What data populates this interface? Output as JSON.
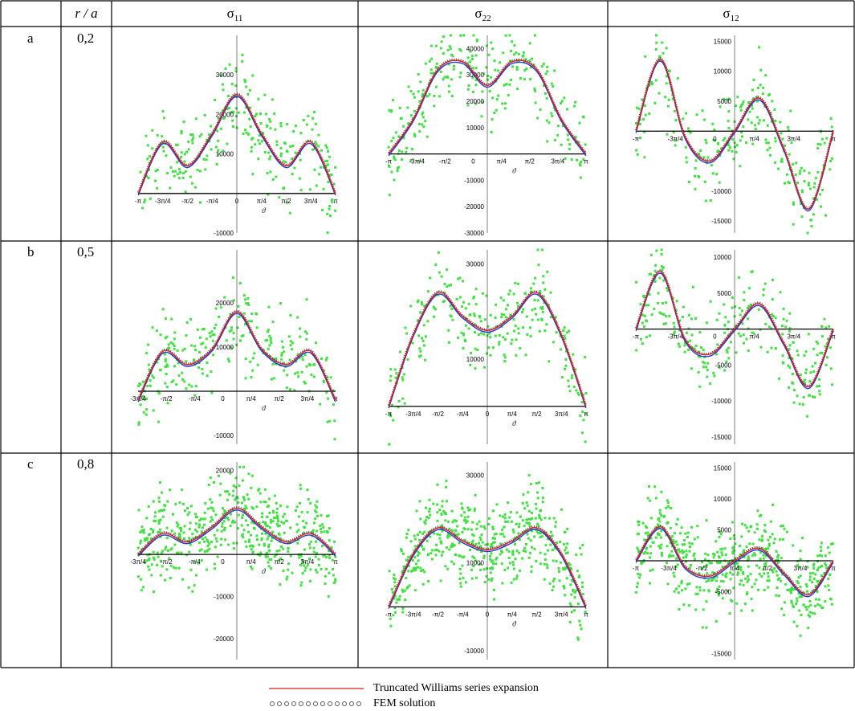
{
  "header": {
    "col_ra": "r / a",
    "col_s11_main": "σ",
    "col_s11_sub": "11",
    "col_s22_main": "σ",
    "col_s22_sub": "22",
    "col_s12_main": "σ",
    "col_s12_sub": "12"
  },
  "rows": [
    {
      "label": "a",
      "ra": "0,2"
    },
    {
      "label": "b",
      "ra": "0,5"
    },
    {
      "label": "c",
      "ra": "0,8"
    }
  ],
  "legend": {
    "williams": "Truncated Williams series expansion",
    "fem": "FEM solution"
  },
  "colors": {
    "williams": "#e11a1a",
    "fem": "#555555",
    "blue": "#1a3bd6",
    "cyan": "#1b8fd6",
    "noise": "#43e043",
    "axis": "#000000"
  },
  "chart_data": [
    {
      "id": "a-s11",
      "type": "line",
      "xlim": [
        -3.1416,
        3.1416
      ],
      "ylim": [
        -10000,
        40000
      ],
      "ytick_labels": [
        "-10000",
        "10000",
        "20000",
        "30000"
      ],
      "ytick_values": [
        -10000,
        10000,
        20000,
        30000
      ],
      "xtick_labels": [
        "-π",
        "-3π/4",
        "-π/2",
        "-π/4",
        "0",
        "π/4",
        "π/2",
        "3π/4",
        "π"
      ],
      "xlabel": "ϑ",
      "series": [
        {
          "role": "williams",
          "x": [
            -3.14,
            -2.36,
            -1.57,
            -0.79,
            0,
            0.79,
            1.57,
            2.36,
            3.14
          ],
          "y": [
            0,
            13000,
            7000,
            15000,
            25000,
            15000,
            7000,
            13000,
            0
          ]
        },
        {
          "role": "fem",
          "x": [
            -3.14,
            -2.36,
            -1.57,
            -0.79,
            0,
            0.79,
            1.57,
            2.36,
            3.14
          ],
          "y": [
            0,
            13000,
            7000,
            15000,
            25000,
            15000,
            7000,
            13000,
            0
          ]
        },
        {
          "role": "blue",
          "x": [
            -3.14,
            -2.36,
            -1.57,
            -0.79,
            0,
            0.79,
            1.57,
            2.36,
            3.14
          ],
          "y": [
            0,
            13000,
            7000,
            15000,
            25000,
            15000,
            7000,
            13000,
            0
          ]
        }
      ]
    },
    {
      "id": "a-s22",
      "type": "line",
      "xlim": [
        -3.1416,
        3.1416
      ],
      "ylim": [
        -30000,
        45000
      ],
      "ytick_labels": [
        "-30000",
        "-20000",
        "-10000",
        "10000",
        "20000",
        "30000",
        "40000"
      ],
      "ytick_values": [
        -30000,
        -20000,
        -10000,
        10000,
        20000,
        30000,
        40000
      ],
      "xtick_labels": [
        "-π",
        "-3π/4",
        "-π/2",
        "0",
        "π/4",
        "π/2",
        "3π/4",
        "π"
      ],
      "xlabel": "ϑ",
      "series": [
        {
          "role": "williams",
          "x": [
            -3.14,
            -2.36,
            -1.57,
            -0.79,
            0,
            0.79,
            1.57,
            2.36,
            3.14
          ],
          "y": [
            0,
            13000,
            32000,
            35000,
            26000,
            35000,
            32000,
            13000,
            0
          ]
        },
        {
          "role": "fem",
          "x": [
            -3.14,
            -2.36,
            -1.57,
            -0.79,
            0,
            0.79,
            1.57,
            2.36,
            3.14
          ],
          "y": [
            0,
            13000,
            32000,
            35000,
            26000,
            35000,
            32000,
            13000,
            0
          ]
        },
        {
          "role": "blue",
          "x": [
            -3.14,
            -2.36,
            -1.57,
            -0.79,
            0,
            0.79,
            1.57,
            2.36,
            3.14
          ],
          "y": [
            0,
            13000,
            32000,
            35000,
            26000,
            35000,
            32000,
            13000,
            0
          ]
        }
      ]
    },
    {
      "id": "a-s12",
      "type": "line",
      "xlim": [
        -3.1416,
        3.1416
      ],
      "ylim": [
        -17000,
        16000
      ],
      "ytick_labels": [
        "-15000",
        "-10000",
        "5000",
        "10000",
        "15000"
      ],
      "ytick_values": [
        -15000,
        -10000,
        5000,
        10000,
        15000
      ],
      "xtick_labels": [
        "-π",
        "-3π/4",
        "0",
        "π/4",
        "3π/4",
        "π"
      ],
      "xlabel": "",
      "series": [
        {
          "role": "williams",
          "x": [
            -3.14,
            -2.36,
            -1.57,
            -0.79,
            0,
            0.79,
            1.57,
            2.36,
            3.14
          ],
          "y": [
            0,
            12000,
            -1000,
            -5000,
            0,
            5500,
            -3000,
            -13000,
            0
          ]
        },
        {
          "role": "fem",
          "x": [
            -3.14,
            -2.36,
            -1.57,
            -0.79,
            0,
            0.79,
            1.57,
            2.36,
            3.14
          ],
          "y": [
            0,
            12000,
            -1000,
            -5000,
            0,
            5500,
            -3000,
            -13000,
            0
          ]
        },
        {
          "role": "blue",
          "x": [
            -3.14,
            -2.36,
            -1.57,
            -0.79,
            0,
            0.79,
            1.57,
            2.36,
            3.14
          ],
          "y": [
            0,
            12000,
            -1000,
            -5000,
            0,
            5500,
            -3000,
            -13000,
            0
          ]
        }
      ]
    },
    {
      "id": "b-s11",
      "type": "line",
      "xlim": [
        -3.1416,
        3.1416
      ],
      "ylim": [
        -12000,
        32000
      ],
      "ytick_labels": [
        "-10000",
        "10000",
        "20000"
      ],
      "ytick_values": [
        -10000,
        10000,
        20000
      ],
      "xtick_labels": [
        "-3π/4",
        "-π/2",
        "-π/4",
        "0",
        "π/4",
        "π/2",
        "3π/4",
        "π"
      ],
      "xlabel": "ϑ",
      "series": [
        {
          "role": "williams",
          "x": [
            -3.14,
            -2.36,
            -1.57,
            -0.79,
            0,
            0.79,
            1.57,
            2.36,
            3.14
          ],
          "y": [
            -2000,
            9000,
            6000,
            9500,
            18000,
            9500,
            6000,
            9000,
            -2000
          ]
        },
        {
          "role": "fem",
          "x": [
            -3.14,
            -2.36,
            -1.57,
            -0.79,
            0,
            0.79,
            1.57,
            2.36,
            3.14
          ],
          "y": [
            -2000,
            9000,
            6000,
            9500,
            18000,
            9500,
            6000,
            9000,
            -2000
          ]
        },
        {
          "role": "blue",
          "x": [
            -3.14,
            -2.36,
            -1.57,
            -0.79,
            0,
            0.79,
            1.57,
            2.36,
            3.14
          ],
          "y": [
            -2000,
            9000,
            6000,
            9500,
            18000,
            9500,
            6000,
            9000,
            -2000
          ]
        }
      ]
    },
    {
      "id": "b-s22",
      "type": "line",
      "xlim": [
        -3.1416,
        3.1416
      ],
      "ylim": [
        -8000,
        33000
      ],
      "ytick_labels": [
        "10000",
        "30000"
      ],
      "ytick_values": [
        10000,
        30000
      ],
      "xtick_labels": [
        "-π",
        "-3π/4",
        "-π/2",
        "-π/4",
        "0",
        "π/4",
        "π/2",
        "3π/4",
        "π"
      ],
      "xlabel": "ϑ",
      "series": [
        {
          "role": "williams",
          "x": [
            -3.14,
            -2.36,
            -1.57,
            -0.79,
            0,
            0.79,
            1.57,
            2.36,
            3.14
          ],
          "y": [
            0,
            15000,
            24000,
            19000,
            16000,
            19000,
            24000,
            15000,
            0
          ]
        },
        {
          "role": "fem",
          "x": [
            -3.14,
            -2.36,
            -1.57,
            -0.79,
            0,
            0.79,
            1.57,
            2.36,
            3.14
          ],
          "y": [
            0,
            15000,
            24000,
            19000,
            16000,
            19000,
            24000,
            15000,
            0
          ]
        },
        {
          "role": "blue",
          "x": [
            -3.14,
            -2.36,
            -1.57,
            -0.79,
            0,
            0.79,
            1.57,
            2.36,
            3.14
          ],
          "y": [
            0,
            15000,
            24000,
            19000,
            16000,
            19000,
            24000,
            15000,
            0
          ]
        }
      ]
    },
    {
      "id": "b-s12",
      "type": "line",
      "xlim": [
        -3.1416,
        3.1416
      ],
      "ylim": [
        -16000,
        11000
      ],
      "ytick_labels": [
        "-15000",
        "-10000",
        "-5000",
        "5000",
        "10000"
      ],
      "ytick_values": [
        -15000,
        -10000,
        -5000,
        5000,
        10000
      ],
      "xtick_labels": [
        "-π",
        "-3π/4",
        "0",
        "π/4",
        "3π/4",
        "π"
      ],
      "xlabel": "",
      "series": [
        {
          "role": "williams",
          "x": [
            -3.14,
            -2.36,
            -1.57,
            -0.79,
            0,
            0.79,
            1.57,
            2.36,
            3.14
          ],
          "y": [
            0,
            8000,
            -1500,
            -3500,
            0,
            3500,
            -2000,
            -8000,
            0
          ]
        },
        {
          "role": "fem",
          "x": [
            -3.14,
            -2.36,
            -1.57,
            -0.79,
            0,
            0.79,
            1.57,
            2.36,
            3.14
          ],
          "y": [
            0,
            8000,
            -1500,
            -3500,
            0,
            3500,
            -2000,
            -8000,
            0
          ]
        },
        {
          "role": "blue",
          "x": [
            -3.14,
            -2.36,
            -1.57,
            -0.79,
            0,
            0.79,
            1.57,
            2.36,
            3.14
          ],
          "y": [
            0,
            8000,
            -1500,
            -3500,
            0,
            3500,
            -2000,
            -8000,
            0
          ]
        }
      ]
    },
    {
      "id": "c-s11",
      "type": "line",
      "xlim": [
        -3.1416,
        3.1416
      ],
      "ylim": [
        -25000,
        22000
      ],
      "ytick_labels": [
        "-20000",
        "-10000",
        "20000"
      ],
      "ytick_values": [
        -20000,
        -10000,
        20000
      ],
      "xtick_labels": [
        "-3π/4",
        "-π/2",
        "-π/4",
        "0",
        "π/4",
        "π/2",
        "3π/4",
        "π"
      ],
      "xlabel": "ϑ",
      "series": [
        {
          "role": "williams",
          "x": [
            -3.14,
            -2.36,
            -1.57,
            -0.79,
            0,
            0.79,
            1.57,
            2.36,
            3.14
          ],
          "y": [
            0,
            5000,
            3000,
            6500,
            11000,
            6500,
            3000,
            5000,
            0
          ]
        },
        {
          "role": "fem",
          "x": [
            -3.14,
            -2.36,
            -1.57,
            -0.79,
            0,
            0.79,
            1.57,
            2.36,
            3.14
          ],
          "y": [
            0,
            5000,
            3000,
            6500,
            11000,
            6500,
            3000,
            5000,
            0
          ]
        },
        {
          "role": "blue",
          "x": [
            -3.14,
            -2.36,
            -1.57,
            -0.79,
            0,
            0.79,
            1.57,
            2.36,
            3.14
          ],
          "y": [
            0,
            5000,
            3000,
            6500,
            11000,
            6500,
            3000,
            5000,
            0
          ]
        }
      ]
    },
    {
      "id": "c-s22",
      "type": "line",
      "xlim": [
        -3.1416,
        3.1416
      ],
      "ylim": [
        -12000,
        33000
      ],
      "ytick_labels": [
        "-10000",
        "10000",
        "30000"
      ],
      "ytick_values": [
        -10000,
        10000,
        30000
      ],
      "xtick_labels": [
        "-π",
        "-3π/4",
        "-π/2",
        "-π/4",
        "0",
        "π/4",
        "π/2",
        "3π/4",
        "π"
      ],
      "xlabel": "ϑ",
      "series": [
        {
          "role": "williams",
          "x": [
            -3.14,
            -2.36,
            -1.57,
            -0.79,
            0,
            0.79,
            1.57,
            2.36,
            3.14
          ],
          "y": [
            0,
            12000,
            18000,
            15000,
            13000,
            15000,
            18000,
            12000,
            0
          ]
        },
        {
          "role": "fem",
          "x": [
            -3.14,
            -2.36,
            -1.57,
            -0.79,
            0,
            0.79,
            1.57,
            2.36,
            3.14
          ],
          "y": [
            0,
            12000,
            18000,
            15000,
            13000,
            15000,
            18000,
            12000,
            0
          ]
        },
        {
          "role": "blue",
          "x": [
            -3.14,
            -2.36,
            -1.57,
            -0.79,
            0,
            0.79,
            1.57,
            2.36,
            3.14
          ],
          "y": [
            0,
            12000,
            18000,
            15000,
            13000,
            15000,
            18000,
            12000,
            0
          ]
        }
      ]
    },
    {
      "id": "c-s12",
      "type": "line",
      "xlim": [
        -3.1416,
        3.1416
      ],
      "ylim": [
        -16000,
        16000
      ],
      "ytick_labels": [
        "-15000",
        "-5000",
        "5000",
        "10000",
        "15000"
      ],
      "ytick_values": [
        -15000,
        -5000,
        5000,
        10000,
        15000
      ],
      "xtick_labels": [
        "-π",
        "-3π/4",
        "-π/2",
        "π/4",
        "π/2",
        "3π/4",
        "π"
      ],
      "xlabel": "",
      "series": [
        {
          "role": "williams",
          "x": [
            -3.14,
            -2.36,
            -1.57,
            -0.79,
            0,
            0.79,
            1.57,
            2.36,
            3.14
          ],
          "y": [
            0,
            5500,
            -1000,
            -2500,
            0,
            2000,
            -2000,
            -5500,
            0
          ]
        },
        {
          "role": "fem",
          "x": [
            -3.14,
            -2.36,
            -1.57,
            -0.79,
            0,
            0.79,
            1.57,
            2.36,
            3.14
          ],
          "y": [
            0,
            5500,
            -1000,
            -2500,
            0,
            2000,
            -2000,
            -5500,
            0
          ]
        },
        {
          "role": "blue",
          "x": [
            -3.14,
            -2.36,
            -1.57,
            -0.79,
            0,
            0.79,
            1.57,
            2.36,
            3.14
          ],
          "y": [
            0,
            5500,
            -1000,
            -2500,
            0,
            2000,
            -2000,
            -5500,
            0
          ]
        }
      ]
    }
  ]
}
